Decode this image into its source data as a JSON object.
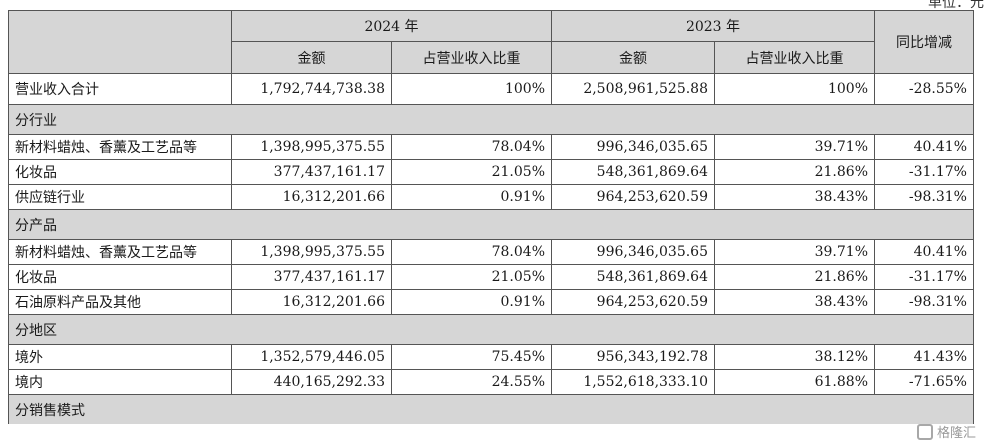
{
  "unit_label": "单位：元",
  "header": {
    "year_2024": "2024 年",
    "year_2023": "2023 年",
    "change": "同比增减",
    "amount": "金额",
    "share": "占营业收入比重"
  },
  "total": {
    "label": "营业收入合计",
    "amount_2024": "1,792,744,738.38",
    "share_2024": "100%",
    "amount_2023": "2,508,961,525.88",
    "share_2023": "100%",
    "change": "-28.55%"
  },
  "sections": [
    {
      "title": "分行业",
      "rows": [
        {
          "label": "新材料蜡烛、香薰及工艺品等",
          "amount_2024": "1,398,995,375.55",
          "share_2024": "78.04%",
          "amount_2023": "996,346,035.65",
          "share_2023": "39.71%",
          "change": "40.41%"
        },
        {
          "label": "化妆品",
          "amount_2024": "377,437,161.17",
          "share_2024": "21.05%",
          "amount_2023": "548,361,869.64",
          "share_2023": "21.86%",
          "change": "-31.17%"
        },
        {
          "label": "供应链行业",
          "amount_2024": "16,312,201.66",
          "share_2024": "0.91%",
          "amount_2023": "964,253,620.59",
          "share_2023": "38.43%",
          "change": "-98.31%"
        }
      ]
    },
    {
      "title": "分产品",
      "rows": [
        {
          "label": "新材料蜡烛、香薰及工艺品等",
          "amount_2024": "1,398,995,375.55",
          "share_2024": "78.04%",
          "amount_2023": "996,346,035.65",
          "share_2023": "39.71%",
          "change": "40.41%"
        },
        {
          "label": "化妆品",
          "amount_2024": "377,437,161.17",
          "share_2024": "21.05%",
          "amount_2023": "548,361,869.64",
          "share_2023": "21.86%",
          "change": "-31.17%"
        },
        {
          "label": "石油原料产品及其他",
          "amount_2024": "16,312,201.66",
          "share_2024": "0.91%",
          "amount_2023": "964,253,620.59",
          "share_2023": "38.43%",
          "change": "-98.31%"
        }
      ]
    },
    {
      "title": "分地区",
      "rows": [
        {
          "label": "境外",
          "amount_2024": "1,352,579,446.05",
          "share_2024": "75.45%",
          "amount_2023": "956,343,192.78",
          "share_2023": "38.12%",
          "change": "41.43%"
        },
        {
          "label": "境内",
          "amount_2024": "440,165,292.33",
          "share_2024": "24.55%",
          "amount_2023": "1,552,618,333.10",
          "share_2023": "61.88%",
          "change": "-71.65%"
        }
      ]
    },
    {
      "title": "分销售模式",
      "rows": []
    }
  ],
  "watermark": "格隆汇"
}
